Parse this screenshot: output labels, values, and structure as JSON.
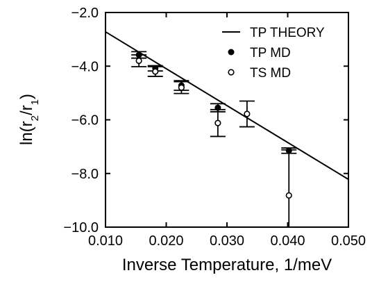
{
  "chart_data": {
    "type": "scatter",
    "title": "",
    "xlabel": "Inverse Temperature, 1/meV",
    "ylabel_parts": [
      "ln(r",
      "2",
      "/r",
      "1",
      ")"
    ],
    "xlim": [
      0.01,
      0.05
    ],
    "ylim": [
      -10.0,
      -2.0
    ],
    "x_ticks": [
      0.01,
      0.02,
      0.03,
      0.04,
      0.05
    ],
    "x_tick_labels": [
      "0.010",
      "0.020",
      "0.030",
      "0.040",
      "0.050"
    ],
    "y_ticks": [
      -10,
      -8,
      -6,
      -4,
      -2
    ],
    "y_tick_labels": [
      "−10.0",
      "−8.0",
      "−6.0",
      "−4.0",
      "−2.0"
    ],
    "grid": false,
    "legend_position": "top-right",
    "series": [
      {
        "name": "TP THEORY",
        "kind": "line",
        "x": [
          0.01,
          0.05
        ],
        "y": [
          -2.72,
          -8.22
        ]
      },
      {
        "name": "TP MD",
        "kind": "filled-circle",
        "x": [
          0.0155,
          0.0182,
          0.0225,
          0.0285,
          0.0402
        ],
        "y": [
          -3.58,
          -4.08,
          -4.72,
          -5.55,
          -7.15
        ],
        "err": [
          0.12,
          0.1,
          0.18,
          0.15,
          0.1
        ]
      },
      {
        "name": "TS MD",
        "kind": "open-circle",
        "x": [
          0.0155,
          0.0182,
          0.0225,
          0.0285,
          0.0333,
          0.0402
        ],
        "y": [
          -3.8,
          -4.2,
          -4.8,
          -6.12,
          -5.78,
          -8.82
        ],
        "err": [
          0.22,
          0.18,
          0.22,
          0.5,
          0.48,
          1.7
        ]
      }
    ]
  }
}
